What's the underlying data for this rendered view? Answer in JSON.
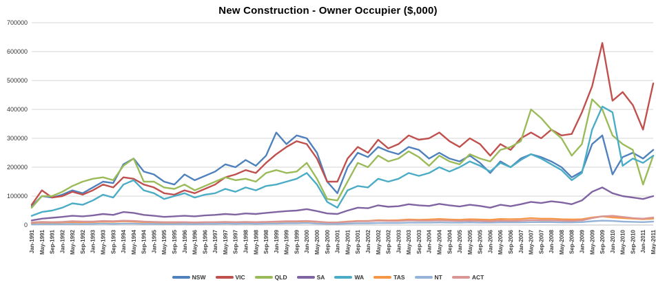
{
  "chart_data": {
    "type": "line",
    "title": "New Construction - Owner Occupier ($,000)",
    "xlabel": "",
    "ylabel": "",
    "ylim": [
      0,
      700000
    ],
    "y_ticks": [
      0,
      100000,
      200000,
      300000,
      400000,
      500000,
      600000,
      700000
    ],
    "grid": "horizontal",
    "legend_position": "bottom",
    "axis_label_color": "#333333",
    "gridline_color": "#d6d6d6",
    "axisline_color": "#bfbfbf",
    "x_tick_labels": [
      "Jan-1991",
      "May-1991",
      "Sep-1991",
      "Jan-1992",
      "May-1992",
      "Sep-1992",
      "Jan-1993",
      "May-1993",
      "Sep-1993",
      "Jan-1994",
      "May-1994",
      "Sep-1994",
      "Jan-1995",
      "May-1995",
      "Sep-1995",
      "Jan-1996",
      "May-1996",
      "Sep-1996",
      "Jan-1997",
      "May-1997",
      "Sep-1997",
      "Jan-1998",
      "May-1998",
      "Sep-1998",
      "Jan-1999",
      "May-1999",
      "Sep-1999",
      "Jan-2000",
      "May-2000",
      "Sep-2000",
      "Jan-2001",
      "May-2001",
      "Sep-2001",
      "Jan-2002",
      "May-2002",
      "Sep-2002",
      "Jan-2003",
      "May-2003",
      "Sep-2003",
      "Jan-2004",
      "May-2004",
      "Sep-2004",
      "Jan-2005",
      "May-2005",
      "Sep-2005",
      "Jan-2006",
      "May-2006",
      "Sep-2006",
      "Jan-2007",
      "May-2007",
      "Sep-2007",
      "Jan-2008",
      "May-2008",
      "Sep-2008",
      "Jan-2009",
      "May-2009",
      "Sep-2009",
      "Jan-2010",
      "May-2010",
      "Sep-2010",
      "Jan-2011",
      "May-2011"
    ],
    "series": [
      {
        "name": "NSW",
        "color": "#4F81BD",
        "values": [
          65000,
          100000,
          95000,
          105000,
          120000,
          110000,
          130000,
          150000,
          145000,
          210000,
          230000,
          185000,
          175000,
          150000,
          140000,
          175000,
          155000,
          170000,
          185000,
          210000,
          200000,
          225000,
          205000,
          240000,
          320000,
          280000,
          310000,
          300000,
          250000,
          150000,
          110000,
          200000,
          250000,
          235000,
          270000,
          255000,
          245000,
          270000,
          260000,
          230000,
          250000,
          230000,
          220000,
          240000,
          215000,
          180000,
          220000,
          200000,
          230000,
          245000,
          235000,
          220000,
          200000,
          165000,
          185000,
          280000,
          310000,
          175000,
          235000,
          250000,
          230000,
          260000
        ]
      },
      {
        "name": "VIC",
        "color": "#C0504D",
        "values": [
          70000,
          120000,
          95000,
          100000,
          115000,
          105000,
          120000,
          140000,
          130000,
          165000,
          160000,
          140000,
          130000,
          110000,
          105000,
          120000,
          110000,
          125000,
          140000,
          165000,
          175000,
          190000,
          180000,
          215000,
          245000,
          270000,
          290000,
          280000,
          230000,
          150000,
          150000,
          230000,
          270000,
          250000,
          295000,
          265000,
          280000,
          310000,
          295000,
          300000,
          320000,
          290000,
          270000,
          300000,
          280000,
          240000,
          280000,
          260000,
          300000,
          320000,
          300000,
          330000,
          310000,
          315000,
          390000,
          480000,
          630000,
          430000,
          460000,
          415000,
          330000,
          490000
        ]
      },
      {
        "name": "QLD",
        "color": "#9BBB59",
        "values": [
          60000,
          100000,
          100000,
          115000,
          135000,
          150000,
          160000,
          165000,
          155000,
          205000,
          230000,
          150000,
          150000,
          130000,
          125000,
          140000,
          120000,
          135000,
          150000,
          165000,
          155000,
          160000,
          150000,
          180000,
          190000,
          180000,
          185000,
          215000,
          160000,
          90000,
          85000,
          150000,
          215000,
          200000,
          240000,
          220000,
          230000,
          255000,
          235000,
          205000,
          240000,
          220000,
          210000,
          245000,
          230000,
          220000,
          260000,
          270000,
          290000,
          400000,
          370000,
          330000,
          300000,
          240000,
          280000,
          435000,
          400000,
          310000,
          280000,
          260000,
          140000,
          240000
        ]
      },
      {
        "name": "SA",
        "color": "#8064A2",
        "values": [
          16000,
          22000,
          25000,
          28000,
          32000,
          30000,
          33000,
          38000,
          35000,
          45000,
          42000,
          35000,
          32000,
          28000,
          30000,
          32000,
          30000,
          33000,
          35000,
          38000,
          36000,
          40000,
          38000,
          42000,
          45000,
          48000,
          50000,
          55000,
          48000,
          40000,
          38000,
          50000,
          60000,
          58000,
          68000,
          63000,
          65000,
          72000,
          68000,
          66000,
          73000,
          68000,
          64000,
          70000,
          66000,
          60000,
          70000,
          65000,
          72000,
          80000,
          76000,
          82000,
          78000,
          72000,
          85000,
          115000,
          130000,
          110000,
          100000,
          95000,
          90000,
          100000
        ]
      },
      {
        "name": "WA",
        "color": "#4BACC6",
        "values": [
          32000,
          45000,
          50000,
          60000,
          75000,
          70000,
          85000,
          105000,
          95000,
          140000,
          155000,
          120000,
          110000,
          90000,
          100000,
          110000,
          95000,
          105000,
          110000,
          125000,
          115000,
          130000,
          120000,
          135000,
          140000,
          150000,
          160000,
          180000,
          140000,
          80000,
          60000,
          120000,
          135000,
          130000,
          160000,
          150000,
          160000,
          180000,
          170000,
          180000,
          200000,
          185000,
          200000,
          220000,
          205000,
          185000,
          215000,
          200000,
          225000,
          245000,
          230000,
          210000,
          190000,
          155000,
          180000,
          330000,
          410000,
          390000,
          205000,
          230000,
          215000,
          240000
        ]
      },
      {
        "name": "TAS",
        "color": "#F79646",
        "values": [
          7000,
          9000,
          8000,
          9000,
          10000,
          9000,
          10000,
          12000,
          11000,
          13000,
          12000,
          10000,
          9000,
          8000,
          8000,
          9000,
          8000,
          9000,
          9000,
          10000,
          9000,
          10000,
          9000,
          10000,
          11000,
          12000,
          12000,
          13000,
          11000,
          9000,
          9000,
          12000,
          14000,
          14000,
          17000,
          16000,
          17000,
          19000,
          18000,
          19000,
          21000,
          19000,
          18000,
          20000,
          19000,
          18000,
          21000,
          20000,
          21000,
          24000,
          22000,
          22000,
          20000,
          19000,
          20000,
          26000,
          30000,
          26000,
          24000,
          22000,
          20000,
          22000
        ]
      },
      {
        "name": "NT",
        "color": "#95B3D7",
        "values": [
          2000,
          3000,
          3000,
          3000,
          4000,
          3000,
          4000,
          5000,
          4000,
          5000,
          5000,
          4000,
          4000,
          3000,
          3000,
          4000,
          3000,
          4000,
          4000,
          5000,
          4000,
          5000,
          4000,
          5000,
          5000,
          6000,
          6000,
          7000,
          5000,
          4000,
          4000,
          5000,
          6000,
          6000,
          7000,
          7000,
          7000,
          8000,
          8000,
          8000,
          9000,
          8000,
          8000,
          9000,
          8000,
          8000,
          9000,
          9000,
          9000,
          10000,
          10000,
          10000,
          9000,
          9000,
          10000,
          13000,
          15000,
          14000,
          12000,
          11000,
          10000,
          12000
        ]
      },
      {
        "name": "ACT",
        "color": "#D99694",
        "values": [
          9000,
          11000,
          10000,
          11000,
          13000,
          12000,
          12000,
          14000,
          13000,
          15000,
          14000,
          12000,
          11000,
          10000,
          10000,
          10000,
          9000,
          10000,
          10000,
          11000,
          10000,
          11000,
          10000,
          11000,
          12000,
          13000,
          13000,
          14000,
          12000,
          9000,
          9000,
          11000,
          13000,
          13000,
          15000,
          14000,
          14000,
          16000,
          15000,
          15000,
          16000,
          15000,
          14000,
          15000,
          14000,
          13000,
          15000,
          14000,
          15000,
          17000,
          16000,
          16000,
          15000,
          14000,
          16000,
          24000,
          30000,
          32000,
          28000,
          24000,
          22000,
          26000
        ]
      }
    ]
  }
}
